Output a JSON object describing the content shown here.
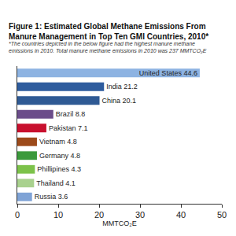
{
  "chart_data": {
    "type": "bar",
    "orientation": "horizontal",
    "title": "Figure 1: Estimated Global Methane Emissions From Manure Management in Top Ten GMI Countries, 2010*",
    "subtitle": "*The countries depicted in the below figure had the highest manure methane emissions in 2010. Total manure methane emissions in 2010 was 237 MMTCO₂E",
    "x_label": "MMTCO₂E",
    "categories": [
      "United States",
      "India",
      "China",
      "Brazil",
      "Pakistan",
      "Vietnam",
      "Germany",
      "Phillipines",
      "Thailand",
      "Russia"
    ],
    "values": [
      44.6,
      21.2,
      20.1,
      8.8,
      7.1,
      4.8,
      4.8,
      4.3,
      4.1,
      3.6
    ],
    "value_labels": [
      "United States 44.6",
      "India 21.2",
      "China 20.1",
      "Brazil 8.8",
      "Pakistan 7.1",
      "Vietnam 4.8",
      "Germany 4.8",
      "Phillipines 4.3",
      "Thailand 4.1",
      "Russia 3.6"
    ],
    "colors": [
      "#8db3e2",
      "#2e5c9e",
      "#2f5a94",
      "#6b4c8a",
      "#c8102e",
      "#9c4a1a",
      "#3c9a3c",
      "#7cc24a",
      "#a9d18e",
      "#7fa3d6"
    ],
    "xlim": [
      0,
      50
    ],
    "xticks": [
      0,
      10,
      20,
      30,
      40,
      50
    ],
    "data_labels": true,
    "tick_labels": "x",
    "grid": false
  }
}
